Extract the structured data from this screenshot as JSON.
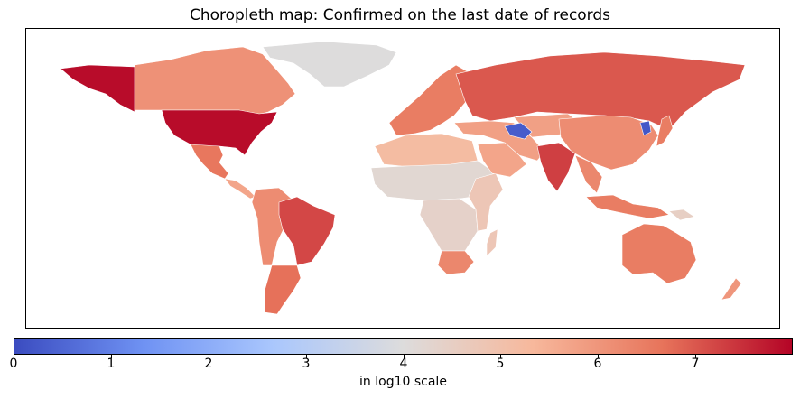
{
  "title": "Choropleth map: Confirmed on the last date of records",
  "colorbar": {
    "label": "in log10 scale",
    "min": 0,
    "max": 8,
    "ticks": [
      "0",
      "1",
      "2",
      "3",
      "4",
      "5",
      "6",
      "7"
    ],
    "colors": [
      "#3b4cc0",
      "#6f92f3",
      "#aac7fd",
      "#dddcdc",
      "#f7b89c",
      "#e7745b",
      "#b40426"
    ]
  },
  "map_data": {
    "metric": "Confirmed",
    "scale": "log10",
    "regions": [
      {
        "name": "United States",
        "value": 7.9
      },
      {
        "name": "Alaska",
        "value": 7.9
      },
      {
        "name": "Canada",
        "value": 6.1
      },
      {
        "name": "Greenland",
        "value": 4.0
      },
      {
        "name": "Mexico",
        "value": 6.6
      },
      {
        "name": "Central America",
        "value": 5.7
      },
      {
        "name": "Brazil",
        "value": 7.2
      },
      {
        "name": "Argentina",
        "value": 6.7
      },
      {
        "name": "Andean South America",
        "value": 6.2
      },
      {
        "name": "Russia",
        "value": 7.0
      },
      {
        "name": "Europe",
        "value": 6.5
      },
      {
        "name": "China",
        "value": 6.2
      },
      {
        "name": "India",
        "value": 7.3
      },
      {
        "name": "Central Asia",
        "value": 5.8
      },
      {
        "name": "Turkmenistan",
        "value": 0.3
      },
      {
        "name": "North Korea",
        "value": 0.2
      },
      {
        "name": "Japan",
        "value": 6.5
      },
      {
        "name": "Middle East",
        "value": 5.8
      },
      {
        "name": "Saudi Arabia",
        "value": 5.7
      },
      {
        "name": "North Africa",
        "value": 5.2
      },
      {
        "name": "Sahel",
        "value": 4.2
      },
      {
        "name": "Central Africa",
        "value": 4.4
      },
      {
        "name": "Eastern Africa",
        "value": 4.8
      },
      {
        "name": "Southern Africa",
        "value": 6.3
      },
      {
        "name": "Madagascar",
        "value": 4.8
      },
      {
        "name": "Southeast Asia",
        "value": 6.3
      },
      {
        "name": "Indonesia",
        "value": 6.5
      },
      {
        "name": "Papua New Guinea",
        "value": 4.5
      },
      {
        "name": "Australia",
        "value": 6.5
      },
      {
        "name": "New Zealand",
        "value": 6.0
      }
    ]
  }
}
